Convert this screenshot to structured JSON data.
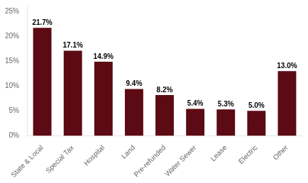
{
  "chart_data": {
    "type": "bar",
    "categories": [
      "State & Local",
      "Special Tax",
      "Hospital",
      "Land",
      "Pre-refunded",
      "Water Sewer",
      "Lease",
      "Electric",
      "Other"
    ],
    "values": [
      21.7,
      17.1,
      14.9,
      9.4,
      8.2,
      5.4,
      5.3,
      5.0,
      13.0
    ],
    "value_labels": [
      "21.7%",
      "17.1%",
      "14.9%",
      "9.4%",
      "8.2%",
      "5.4%",
      "5.3%",
      "5.0%",
      "13.0%"
    ],
    "data_labels": true,
    "color": "#5C0A14",
    "ylim": [
      0,
      26
    ],
    "yticks": [
      {
        "value": 0,
        "label": "0%"
      },
      {
        "value": 5,
        "label": "5%"
      },
      {
        "value": 10,
        "label": "10%"
      },
      {
        "value": 15,
        "label": "15%"
      },
      {
        "value": 20,
        "label": "20%"
      },
      {
        "value": 25,
        "label": "25%"
      }
    ],
    "grid": false
  }
}
